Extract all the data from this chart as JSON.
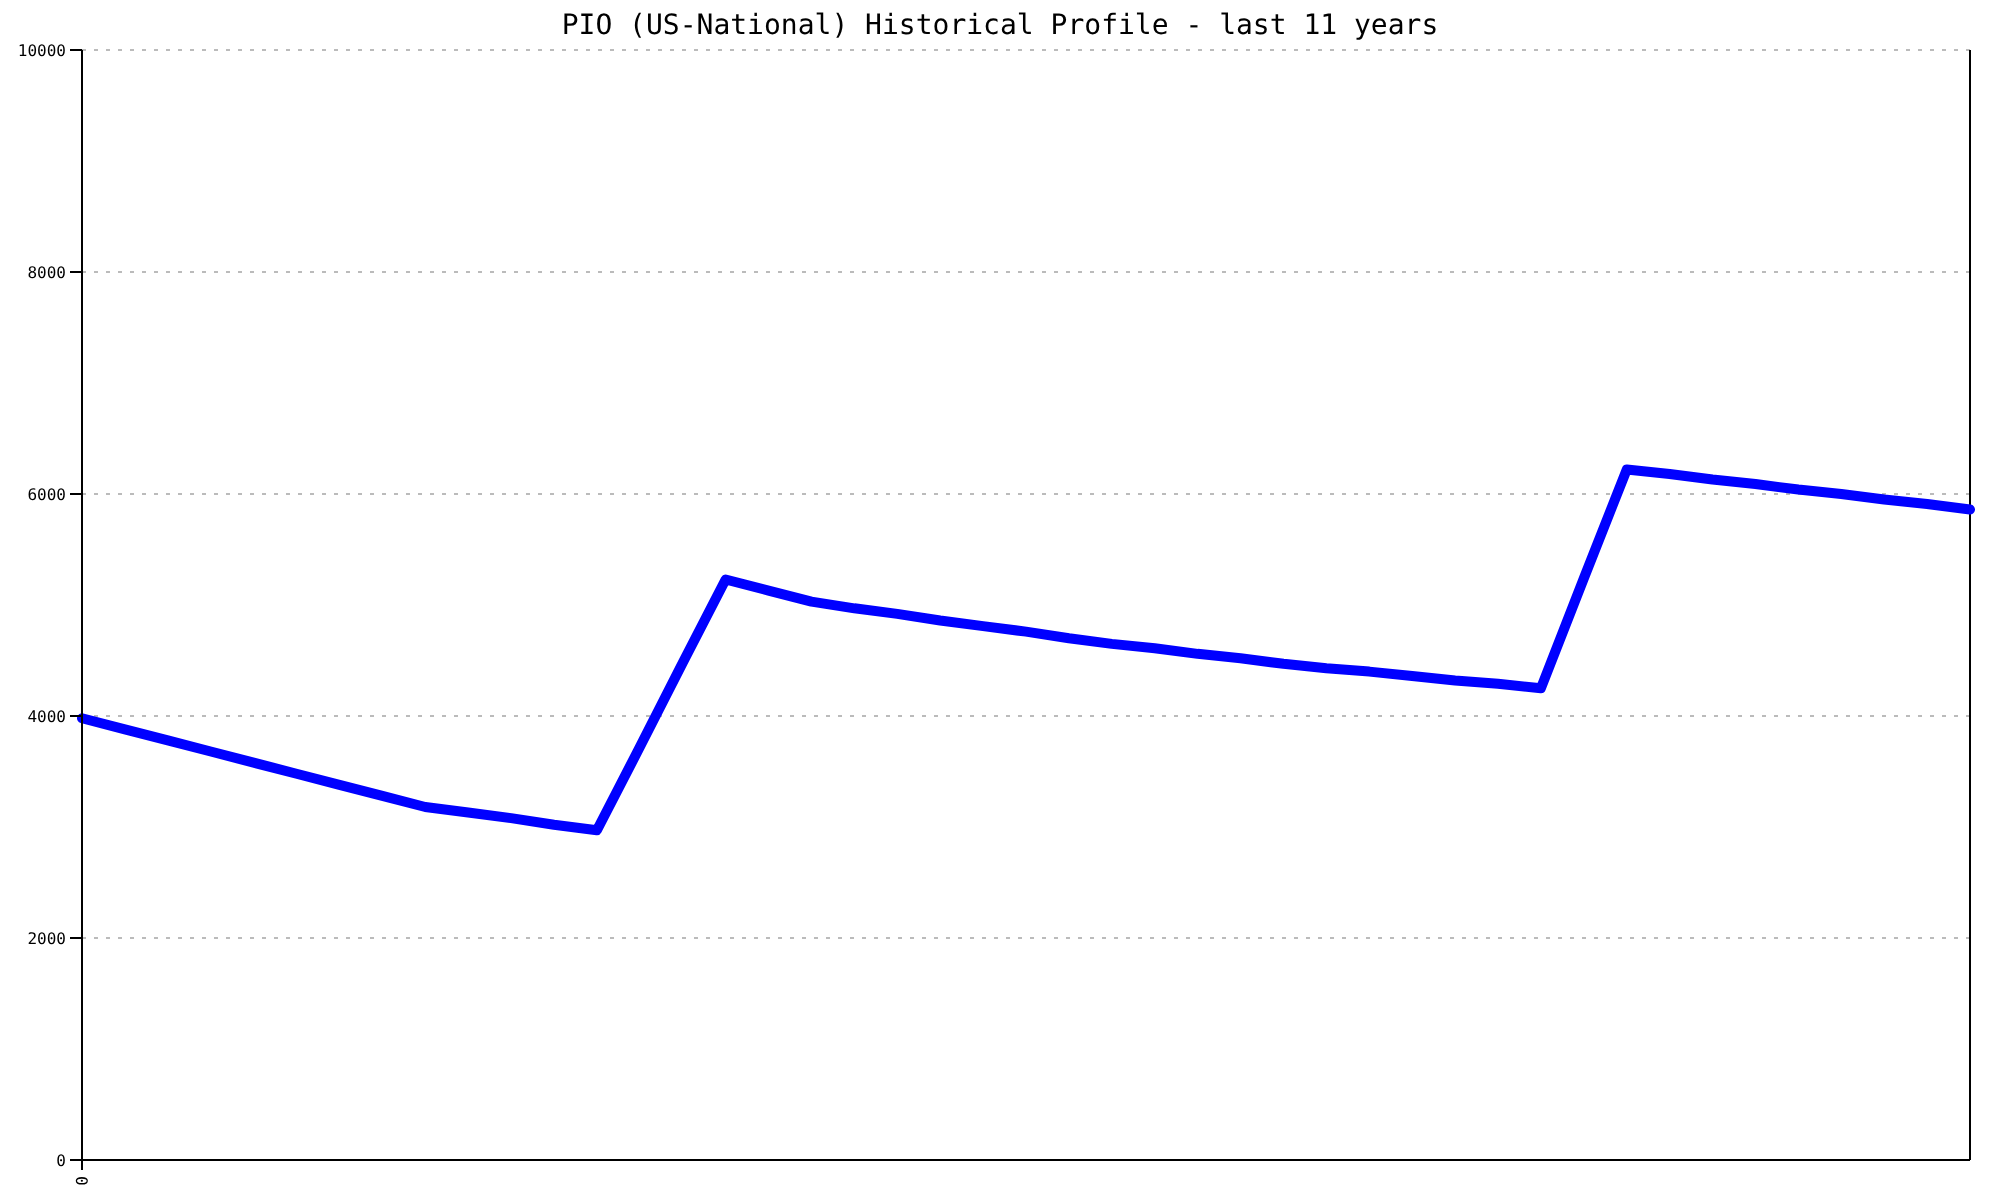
{
  "chart_data": {
    "type": "line",
    "title": "PIO (US-National) Historical Profile - last 11 years",
    "categories": [
      "0",
      null,
      null,
      null,
      null,
      null,
      null,
      null,
      null,
      null,
      null,
      null,
      null,
      null,
      null,
      null,
      null,
      null,
      null,
      null,
      null,
      null,
      null,
      null,
      null,
      null,
      null,
      null,
      null,
      null,
      null,
      null,
      null,
      null,
      null,
      null,
      null,
      null,
      null,
      null,
      null,
      null,
      null,
      null,
      null
    ],
    "series": [
      {
        "color": "#0000ff",
        "values": [
          3980,
          3880,
          3780,
          3680,
          3580,
          3480,
          3380,
          3280,
          3180,
          3130,
          3080,
          3020,
          2970,
          3720,
          4480,
          5230,
          5130,
          5030,
          4970,
          4920,
          4860,
          4810,
          4760,
          4700,
          4650,
          4610,
          4560,
          4520,
          4470,
          4430,
          4400,
          4360,
          4320,
          4290,
          4250,
          5240,
          6220,
          6180,
          6130,
          6090,
          6040,
          6000,
          5950,
          5910,
          5860
        ]
      }
    ],
    "ylim": [
      0,
      10000
    ],
    "yticks": [
      0,
      2000,
      4000,
      6000,
      8000,
      10000
    ],
    "grid": "y",
    "marker": "none",
    "line_style": "solid"
  }
}
